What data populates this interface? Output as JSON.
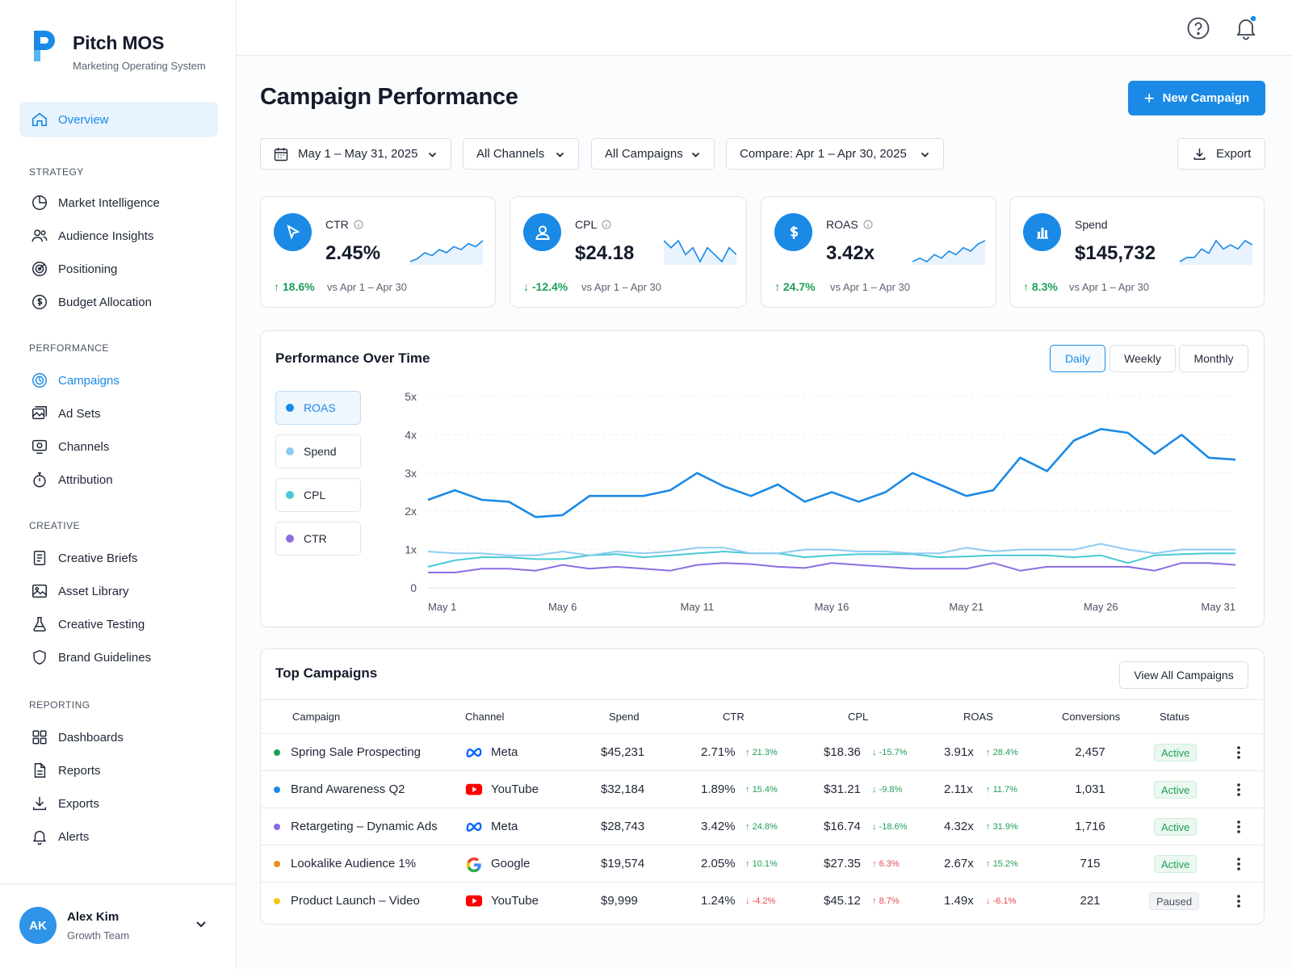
{
  "brand": {
    "name": "Pitch MOS",
    "subtitle": "Marketing Operating System"
  },
  "nav": {
    "overview": "Overview",
    "sections": [
      {
        "label": "STRATEGY",
        "items": [
          "Market Intelligence",
          "Audience Insights",
          "Positioning",
          "Budget Allocation"
        ]
      },
      {
        "label": "PERFORMANCE",
        "items": [
          "Campaigns",
          "Ad Sets",
          "Channels",
          "Attribution"
        ]
      },
      {
        "label": "CREATIVE",
        "items": [
          "Creative Briefs",
          "Asset Library",
          "Creative Testing",
          "Brand Guidelines"
        ]
      },
      {
        "label": "REPORTING",
        "items": [
          "Dashboards",
          "Reports",
          "Exports",
          "Alerts"
        ]
      }
    ]
  },
  "user": {
    "initials": "AK",
    "name": "Alex Kim",
    "team": "Growth Team"
  },
  "page": {
    "title": "Campaign Performance",
    "new_campaign": "New Campaign",
    "export": "Export"
  },
  "filters": {
    "date": "May 1 – May 31, 2025",
    "channels": "All Channels",
    "campaigns": "All Campaigns",
    "compare": "Compare: Apr 1 – Apr 30, 2025"
  },
  "kpis": [
    {
      "label": "CTR",
      "value": "2.45%",
      "delta": "18.6%",
      "direction": "up",
      "vs": "vs Apr 1 – Apr 30",
      "spark": [
        3,
        4,
        6,
        5,
        7,
        6,
        8,
        7,
        9,
        8,
        10
      ]
    },
    {
      "label": "CPL",
      "value": "$24.18",
      "delta": "-12.4%",
      "direction": "down",
      "vs": "vs Apr 1 – Apr 30",
      "spark": [
        9,
        8,
        9,
        7,
        8,
        6,
        8,
        7,
        6,
        8,
        7
      ]
    },
    {
      "label": "ROAS",
      "value": "3.42x",
      "delta": "24.7%",
      "direction": "up",
      "vs": "vs Apr 1 – Apr 30",
      "spark": [
        3,
        4,
        3,
        5,
        4,
        6,
        5,
        7,
        6,
        8,
        9
      ]
    },
    {
      "label": "Spend",
      "value": "$145,732",
      "delta": "8.3%",
      "direction": "up",
      "vs": "vs Apr 1 – Apr 30",
      "spark": [
        3,
        4,
        4,
        6,
        5,
        8,
        6,
        7,
        6,
        8,
        7
      ]
    }
  ],
  "performance": {
    "title": "Performance Over Time",
    "periods": [
      "Daily",
      "Weekly",
      "Monthly"
    ],
    "selected_period": "Daily",
    "legend": [
      "ROAS",
      "Spend",
      "CPL",
      "CTR"
    ]
  },
  "chart_data": {
    "type": "line",
    "title": "Performance Over Time",
    "x": [
      "May 1",
      "May 2",
      "May 3",
      "May 4",
      "May 5",
      "May 6",
      "May 7",
      "May 8",
      "May 9",
      "May 10",
      "May 11",
      "May 12",
      "May 13",
      "May 14",
      "May 15",
      "May 16",
      "May 17",
      "May 18",
      "May 19",
      "May 20",
      "May 21",
      "May 22",
      "May 23",
      "May 24",
      "May 25",
      "May 26",
      "May 27",
      "May 28",
      "May 29",
      "May 30",
      "May 31"
    ],
    "xticks": [
      "May 1",
      "May 6",
      "May 11",
      "May 16",
      "May 21",
      "May 26",
      "May 31"
    ],
    "yticks": [
      "0",
      "1x",
      "2x",
      "3x",
      "4x",
      "5x"
    ],
    "ylim": [
      0,
      5
    ],
    "grid": true,
    "series": [
      {
        "name": "ROAS",
        "color": "#1a8ae6",
        "values": [
          2.3,
          2.55,
          2.3,
          2.25,
          1.85,
          1.9,
          2.4,
          2.4,
          2.4,
          2.55,
          3.0,
          2.65,
          2.4,
          2.7,
          2.25,
          2.5,
          2.25,
          2.5,
          3.0,
          2.7,
          2.4,
          2.55,
          3.4,
          3.05,
          3.85,
          4.15,
          4.05,
          3.5,
          4.0,
          3.4,
          3.35
        ]
      },
      {
        "name": "Spend",
        "color": "#8fcbf2",
        "values": [
          0.95,
          0.9,
          0.9,
          0.85,
          0.85,
          0.95,
          0.85,
          0.95,
          0.9,
          0.95,
          1.05,
          1.05,
          0.9,
          0.9,
          1.0,
          1.0,
          0.95,
          0.95,
          0.9,
          0.9,
          1.05,
          0.95,
          1.0,
          1.0,
          1.0,
          1.15,
          1.0,
          0.9,
          1.0,
          1.0,
          1.0
        ]
      },
      {
        "name": "CPL",
        "color": "#48c9d4",
        "values": [
          0.55,
          0.72,
          0.8,
          0.8,
          0.75,
          0.75,
          0.85,
          0.88,
          0.8,
          0.85,
          0.9,
          0.95,
          0.9,
          0.9,
          0.8,
          0.85,
          0.88,
          0.88,
          0.88,
          0.8,
          0.82,
          0.85,
          0.85,
          0.85,
          0.8,
          0.85,
          0.65,
          0.85,
          0.88,
          0.9,
          0.9
        ]
      },
      {
        "name": "CTR",
        "color": "#8b6de0",
        "values": [
          0.4,
          0.4,
          0.5,
          0.5,
          0.45,
          0.6,
          0.5,
          0.55,
          0.5,
          0.45,
          0.6,
          0.65,
          0.62,
          0.55,
          0.52,
          0.65,
          0.6,
          0.55,
          0.5,
          0.5,
          0.5,
          0.65,
          0.45,
          0.55,
          0.55,
          0.55,
          0.55,
          0.45,
          0.65,
          0.65,
          0.6
        ]
      }
    ]
  },
  "campaigns": {
    "title": "Top Campaigns",
    "view_all": "View All Campaigns",
    "headers": [
      "Campaign",
      "Channel",
      "Spend",
      "CTR",
      "CPL",
      "ROAS",
      "Conversions",
      "Status"
    ],
    "rows": [
      {
        "name": "Spring Sale Prospecting",
        "dot": "#1e9e58",
        "channel": "Meta",
        "channel_icon": "meta-icon",
        "spend": "$45,231",
        "ctr": "2.71%",
        "ctr_delta": "21.3%",
        "ctr_dir": "up",
        "cpl": "$18.36",
        "cpl_delta": "-15.7%",
        "cpl_dir": "down",
        "roas": "3.91x",
        "roas_delta": "28.4%",
        "roas_dir": "up",
        "conversions": "2,457",
        "status": "Active"
      },
      {
        "name": "Brand Awareness Q2",
        "dot": "#1a8ae6",
        "channel": "YouTube",
        "channel_icon": "youtube-icon",
        "spend": "$32,184",
        "ctr": "1.89%",
        "ctr_delta": "15.4%",
        "ctr_dir": "up",
        "cpl": "$31.21",
        "cpl_delta": "-9.8%",
        "cpl_dir": "down",
        "roas": "2.11x",
        "roas_delta": "11.7%",
        "roas_dir": "up",
        "conversions": "1,031",
        "status": "Active"
      },
      {
        "name": "Retargeting – Dynamic Ads",
        "dot": "#8b6de0",
        "channel": "Meta",
        "channel_icon": "meta-icon",
        "spend": "$28,743",
        "ctr": "3.42%",
        "ctr_delta": "24.8%",
        "ctr_dir": "up",
        "cpl": "$16.74",
        "cpl_delta": "-18.6%",
        "cpl_dir": "down",
        "roas": "4.32x",
        "roas_delta": "31.9%",
        "roas_dir": "up",
        "conversions": "1,716",
        "status": "Active"
      },
      {
        "name": "Lookalike Audience 1%",
        "dot": "#f08a24",
        "channel": "Google",
        "channel_icon": "google-icon",
        "spend": "$19,574",
        "ctr": "2.05%",
        "ctr_delta": "10.1%",
        "ctr_dir": "up",
        "cpl": "$27.35",
        "cpl_delta": "6.3%",
        "cpl_dir": "bad-up",
        "roas": "2.67x",
        "roas_delta": "15.2%",
        "roas_dir": "up",
        "conversions": "715",
        "status": "Active"
      },
      {
        "name": "Product Launch – Video",
        "dot": "#f5c518",
        "channel": "YouTube",
        "channel_icon": "youtube-icon",
        "spend": "$9,999",
        "ctr": "1.24%",
        "ctr_delta": "-4.2%",
        "ctr_dir": "bad-down",
        "cpl": "$45.12",
        "cpl_delta": "8.7%",
        "cpl_dir": "bad-up",
        "roas": "1.49x",
        "roas_delta": "-6.1%",
        "roas_dir": "bad-down",
        "conversions": "221",
        "status": "Paused"
      }
    ]
  }
}
